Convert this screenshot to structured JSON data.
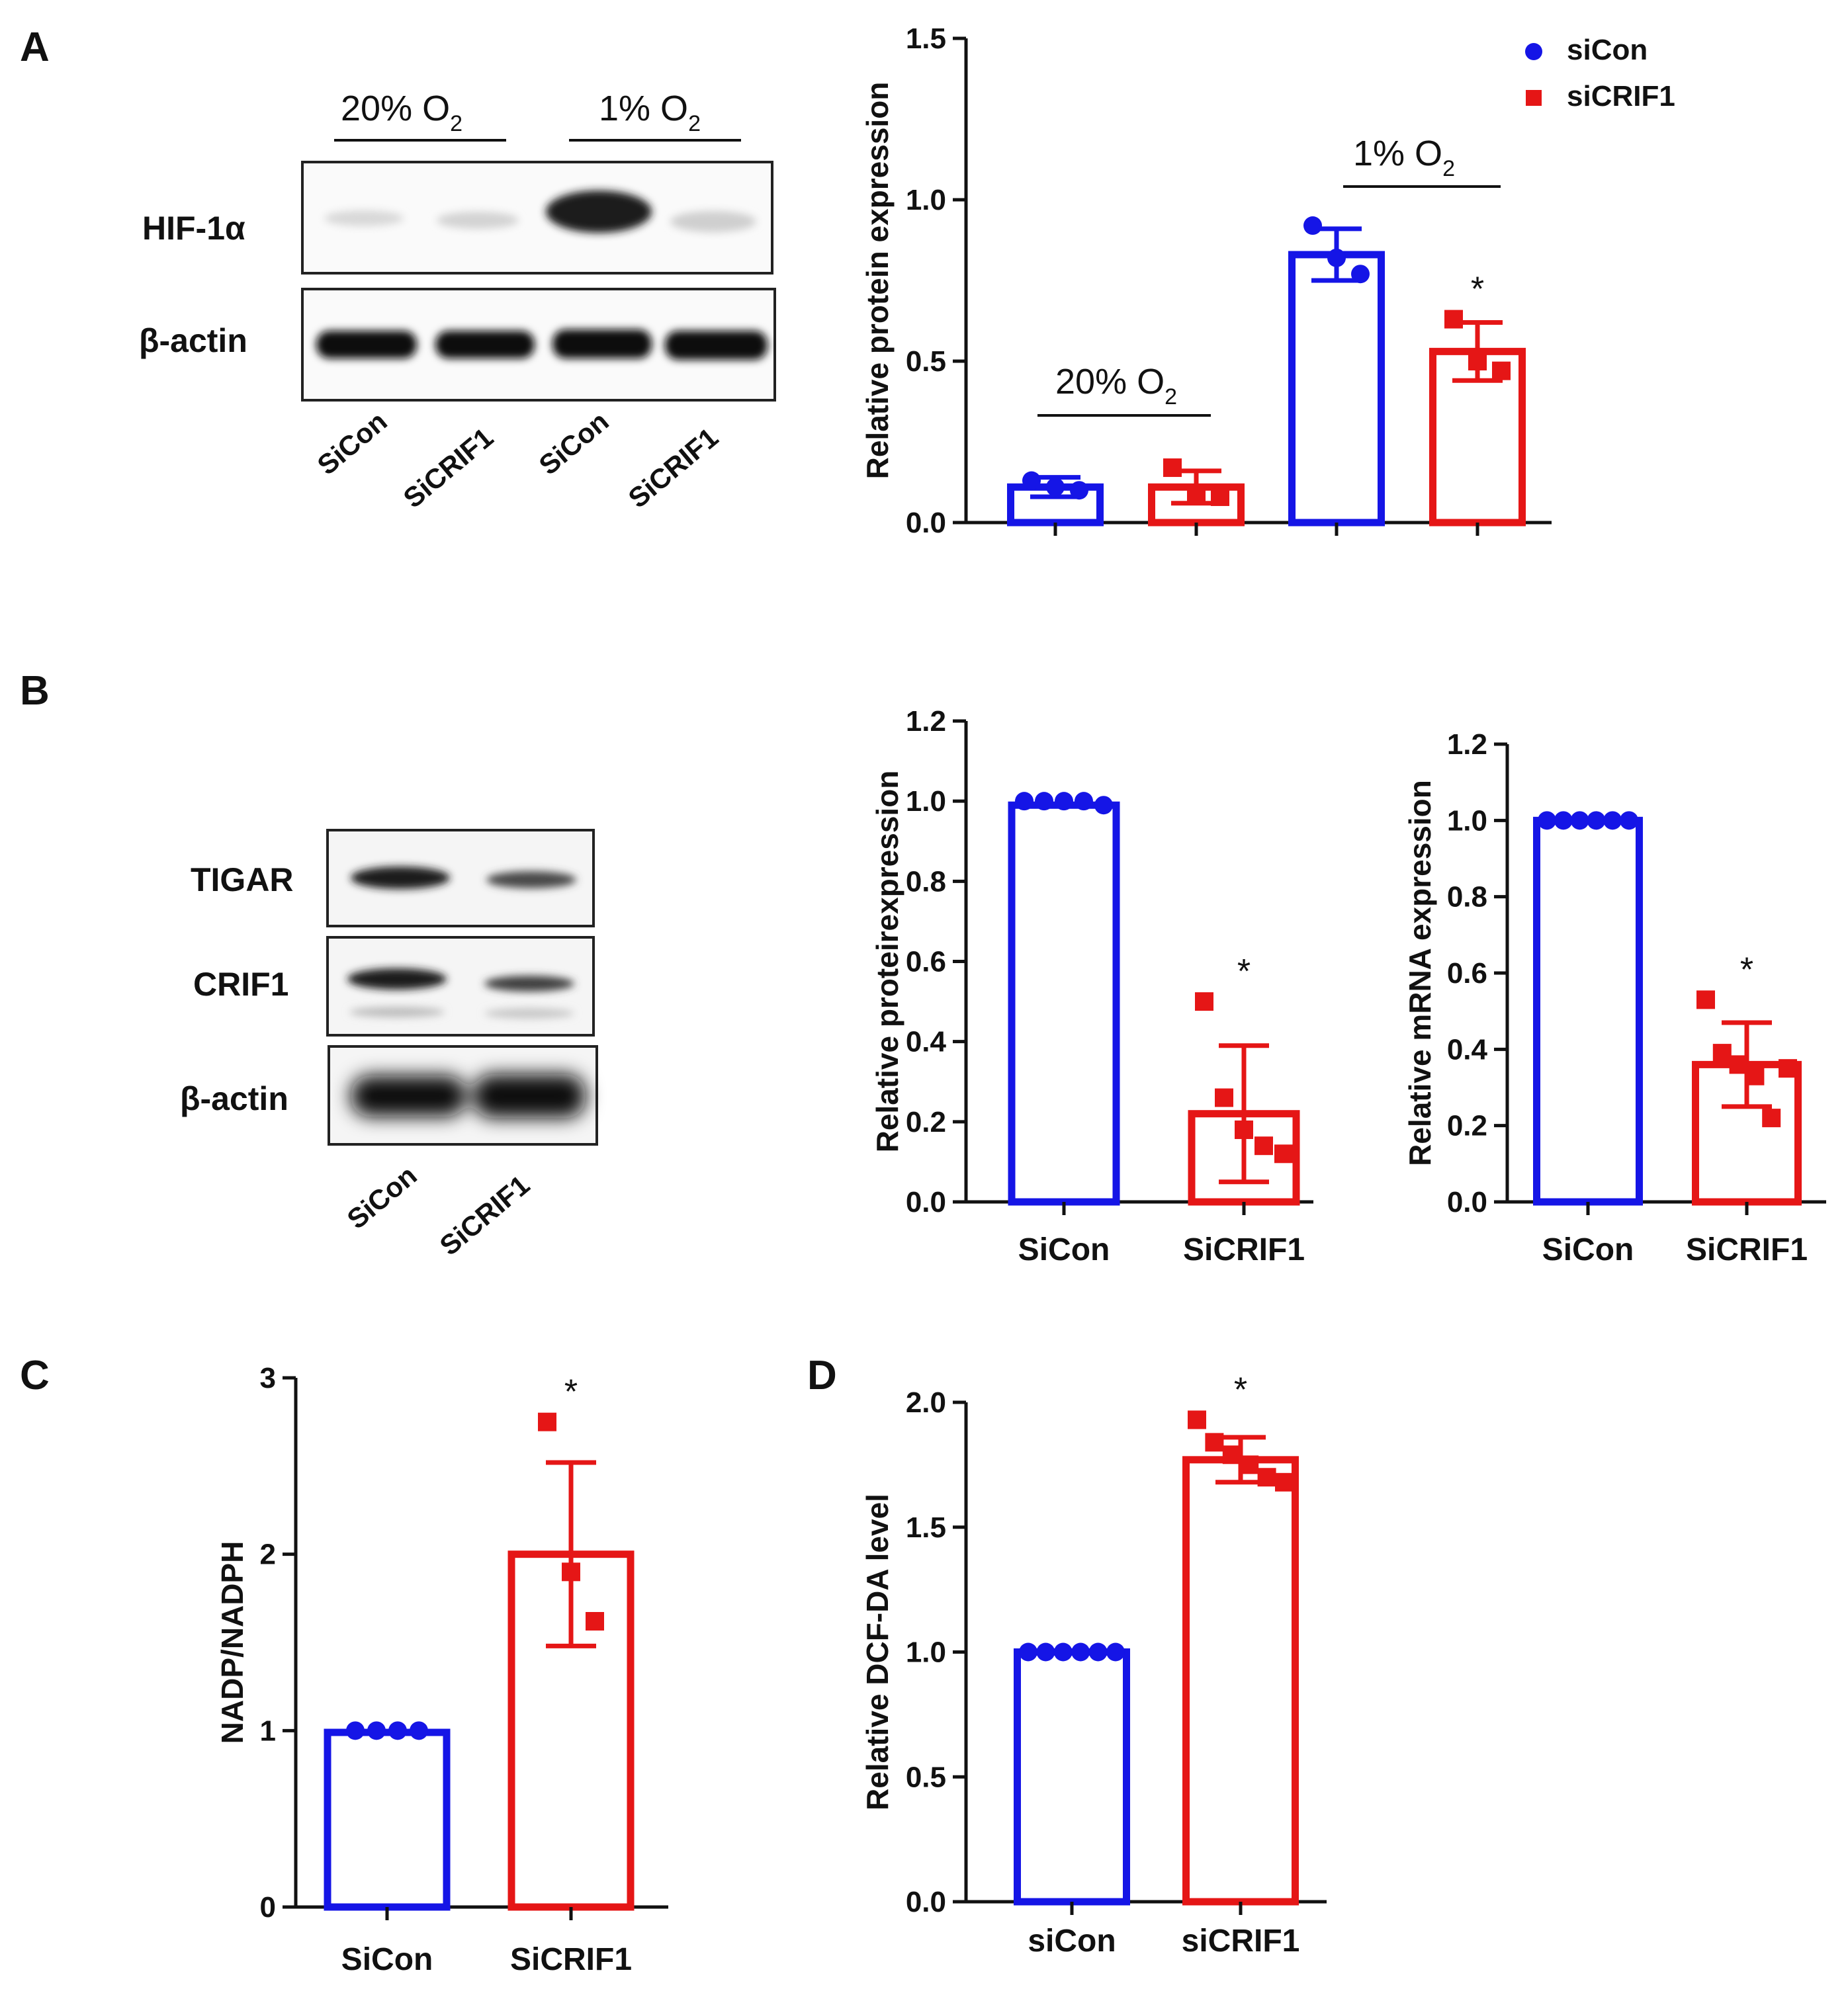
{
  "colors": {
    "siCon": "#1515e6",
    "siCRIF1": "#e51616",
    "axis": "#111111"
  },
  "panels": {
    "A": {
      "label": "A"
    },
    "B": {
      "label": "B"
    },
    "C": {
      "label": "C"
    },
    "D": {
      "label": "D"
    }
  },
  "blot_a": {
    "cond1": "20% O",
    "cond1_sub": "2",
    "cond2": "1% O",
    "cond2_sub": "2",
    "bands": [
      "HIF-1α",
      "β-actin"
    ],
    "lanes": [
      "SiCon",
      "SiCRIF1",
      "SiCon",
      "SiCRIF1"
    ]
  },
  "blot_b": {
    "bands": [
      "TIGAR",
      "CRIF1",
      "β-actin"
    ],
    "lanes": [
      "SiCon",
      "SiCRIF1"
    ]
  },
  "legend": {
    "items": [
      {
        "name": "siCon",
        "marker": "circle"
      },
      {
        "name": "siCRIF1",
        "marker": "square"
      }
    ]
  },
  "chart_data": [
    {
      "id": "A",
      "type": "bar",
      "ylabel": "Relative  protein expression",
      "ylim": [
        0,
        1.5
      ],
      "yticks": [
        "0.0",
        "0.5",
        "1.0",
        "1.5"
      ],
      "groups": [
        {
          "label": "20% O",
          "sub": "2"
        },
        {
          "label": "1% O",
          "sub": "2"
        }
      ],
      "bars": [
        {
          "series": "siCon",
          "condition": "20% O2",
          "value": 0.11,
          "sd": 0.03,
          "points": [
            0.13,
            0.11,
            0.1
          ],
          "sig": ""
        },
        {
          "series": "siCRIF1",
          "condition": "20% O2",
          "value": 0.11,
          "sd": 0.05,
          "points": [
            0.17,
            0.09,
            0.08
          ],
          "sig": ""
        },
        {
          "series": "siCon",
          "condition": "1% O2",
          "value": 0.83,
          "sd": 0.08,
          "points": [
            0.92,
            0.82,
            0.77
          ],
          "sig": ""
        },
        {
          "series": "siCRIF1",
          "condition": "1% O2",
          "value": 0.53,
          "sd": 0.09,
          "points": [
            0.63,
            0.5,
            0.47
          ],
          "sig": "*"
        }
      ]
    },
    {
      "id": "B1",
      "type": "bar",
      "ylabel": "Relative proteirexpression",
      "ylim": [
        0,
        1.2
      ],
      "yticks": [
        "0.0",
        "0.2",
        "0.4",
        "0.6",
        "0.8",
        "1.0",
        "1.2"
      ],
      "categories": [
        "SiCon",
        "SiCRIF1"
      ],
      "bars": [
        {
          "series": "siCon",
          "value": 0.99,
          "sd": 0.0,
          "points": [
            1.0,
            1.0,
            1.0,
            1.0,
            0.99
          ],
          "sig": ""
        },
        {
          "series": "siCRIF1",
          "value": 0.22,
          "sd": 0.17,
          "points": [
            0.5,
            0.26,
            0.18,
            0.14,
            0.12
          ],
          "sig": "*"
        }
      ]
    },
    {
      "id": "B2",
      "type": "bar",
      "ylabel": "Relative mRNA expression",
      "ylim": [
        0,
        1.2
      ],
      "yticks": [
        "0.0",
        "0.2",
        "0.4",
        "0.6",
        "0.8",
        "1.0",
        "1.2"
      ],
      "categories": [
        "SiCon",
        "SiCRIF1"
      ],
      "bars": [
        {
          "series": "siCon",
          "value": 1.0,
          "sd": 0.0,
          "points": [
            1.0,
            1.0,
            1.0,
            1.0,
            1.0,
            1.0
          ],
          "sig": ""
        },
        {
          "series": "siCRIF1",
          "value": 0.36,
          "sd": 0.11,
          "points": [
            0.53,
            0.39,
            0.36,
            0.33,
            0.22,
            0.35
          ],
          "sig": "*"
        }
      ]
    },
    {
      "id": "C",
      "type": "bar",
      "ylabel": "NADP/NADPH",
      "ylim": [
        0,
        3
      ],
      "yticks": [
        "0",
        "1",
        "2",
        "3"
      ],
      "categories": [
        "SiCon",
        "SiCRIF1"
      ],
      "bars": [
        {
          "series": "siCon",
          "value": 0.99,
          "sd": 0.0,
          "points": [
            1.0,
            1.0,
            1.0,
            1.0
          ],
          "sig": ""
        },
        {
          "series": "siCRIF1",
          "value": 2.0,
          "sd": 0.52,
          "points": [
            2.75,
            1.9,
            1.62
          ],
          "sig": "*"
        }
      ]
    },
    {
      "id": "D",
      "type": "bar",
      "ylabel": "Relative DCF-DA level",
      "ylim": [
        0,
        2.0
      ],
      "yticks": [
        "0.0",
        "0.5",
        "1.0",
        "1.5",
        "2.0"
      ],
      "categories": [
        "siCon",
        "siCRIF1"
      ],
      "bars": [
        {
          "series": "siCon",
          "value": 1.0,
          "sd": 0.0,
          "points": [
            1.0,
            1.0,
            1.0,
            1.0,
            1.0,
            1.0
          ],
          "sig": ""
        },
        {
          "series": "siCRIF1",
          "value": 1.77,
          "sd": 0.09,
          "points": [
            1.93,
            1.84,
            1.79,
            1.75,
            1.7,
            1.68
          ],
          "sig": "*"
        }
      ]
    }
  ]
}
